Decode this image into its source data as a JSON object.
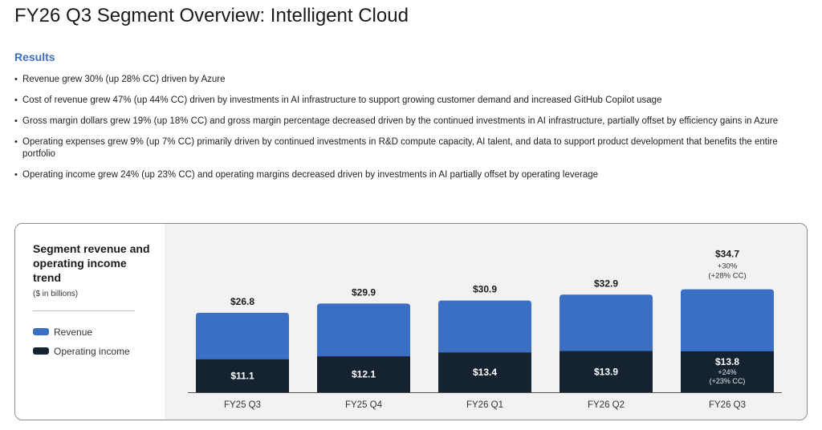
{
  "header": {
    "title": "FY26 Q3 Segment Overview: Intelligent Cloud"
  },
  "results": {
    "heading": "Results",
    "bullets": [
      "Revenue grew 30% (up 28% CC) driven by Azure",
      "Cost of revenue grew 47% (up 44% CC) driven by investments in AI infrastructure to support growing customer demand and increased GitHub Copilot usage",
      "Gross margin dollars grew 19% (up 18% CC) and gross margin percentage decreased driven by the continued investments in AI infrastructure, partially offset by efficiency gains in Azure",
      "Operating expenses grew 9% (up 7% CC) primarily driven by continued investments in R&D compute capacity, AI talent, and data to support product development that benefits the entire portfolio",
      "Operating income grew 24% (up 23% CC) and operating margins decreased driven by investments in AI partially offset by operating leverage"
    ]
  },
  "chart_data": {
    "type": "bar",
    "stacked": true,
    "title": "Segment revenue and operating income trend",
    "subtitle": "($ in billions)",
    "categories": [
      "FY25 Q3",
      "FY25 Q4",
      "FY26 Q1",
      "FY26 Q2",
      "FY26 Q3"
    ],
    "series": [
      {
        "name": "Revenue",
        "values": [
          26.8,
          29.9,
          30.9,
          32.9,
          34.7
        ],
        "color": "#3b6fc4"
      },
      {
        "name": "Operating income",
        "values": [
          11.1,
          12.1,
          13.4,
          13.9,
          13.8
        ],
        "color": "#152230"
      }
    ],
    "revenue_labels": [
      "$26.8",
      "$29.9",
      "$30.9",
      "$32.9",
      "$34.7"
    ],
    "income_labels": [
      "$11.1",
      "$12.1",
      "$13.4",
      "$13.9",
      "$13.8"
    ],
    "revenue_growth_note": [
      "+30%",
      "(+28% CC)"
    ],
    "income_growth_note": [
      "+24%",
      "(+23% CC)"
    ],
    "legend_position": "left",
    "grid": false
  }
}
